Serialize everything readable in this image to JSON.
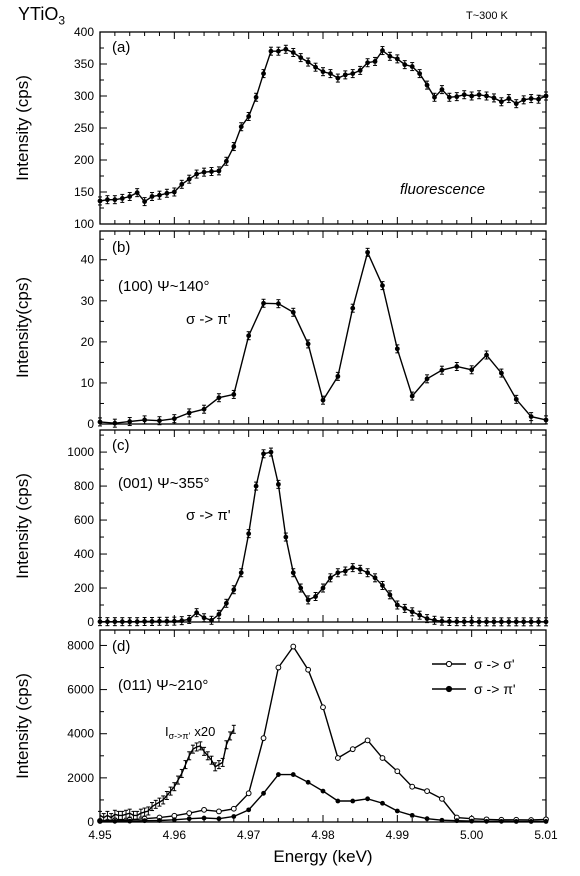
{
  "header": {
    "title": "YTiO3",
    "title_main": "YTiO",
    "title_sub": "3",
    "temperature": "T~300 K"
  },
  "chart_data": [
    {
      "type": "line",
      "panel_label": "(a)",
      "ylabel": "Intensity (cps)",
      "xlim": [
        4.95,
        5.01
      ],
      "ylim": [
        100,
        400
      ],
      "yticks": [
        100,
        150,
        200,
        250,
        300,
        350,
        400
      ],
      "annotations": [
        "fluorescence"
      ],
      "series": [
        {
          "marker": "filled",
          "x": [
            4.95,
            4.951,
            4.952,
            4.953,
            4.954,
            4.955,
            4.956,
            4.957,
            4.958,
            4.959,
            4.96,
            4.961,
            4.962,
            4.963,
            4.964,
            4.965,
            4.966,
            4.967,
            4.968,
            4.969,
            4.97,
            4.971,
            4.972,
            4.973,
            4.974,
            4.975,
            4.976,
            4.977,
            4.978,
            4.979,
            4.98,
            4.981,
            4.982,
            4.983,
            4.984,
            4.985,
            4.986,
            4.987,
            4.988,
            4.989,
            4.99,
            4.991,
            4.992,
            4.993,
            4.994,
            4.995,
            4.996,
            4.997,
            4.998,
            4.999,
            5.0,
            5.001,
            5.002,
            5.003,
            5.004,
            5.005,
            5.006,
            5.007,
            5.008,
            5.009,
            5.01
          ],
          "y": [
            136,
            138,
            138,
            140,
            143,
            149,
            135,
            143,
            145,
            148,
            150,
            162,
            170,
            178,
            181,
            182,
            183,
            198,
            221,
            252,
            268,
            298,
            335,
            370,
            370,
            373,
            368,
            360,
            353,
            345,
            338,
            335,
            328,
            333,
            335,
            340,
            352,
            354,
            371,
            362,
            358,
            349,
            346,
            335,
            317,
            298,
            310,
            298,
            299,
            302,
            300,
            302,
            300,
            297,
            291,
            296,
            288,
            294,
            296,
            295,
            300
          ]
        }
      ]
    },
    {
      "type": "line",
      "panel_label": "(b)",
      "ylabel": "Intensity(cps)",
      "xlim": [
        4.95,
        5.01
      ],
      "ylim": [
        0,
        47
      ],
      "yticks": [
        0,
        10,
        20,
        30,
        40
      ],
      "annotations": [
        "(100)  Ψ~140°",
        "σ -> π'"
      ],
      "series": [
        {
          "marker": "filled",
          "x": [
            4.95,
            4.952,
            4.954,
            4.956,
            4.958,
            4.96,
            4.962,
            4.964,
            4.966,
            4.968,
            4.97,
            4.972,
            4.974,
            4.976,
            4.978,
            4.98,
            4.982,
            4.984,
            4.986,
            4.988,
            4.99,
            4.992,
            4.994,
            4.996,
            4.998,
            5.0,
            5.002,
            5.004,
            5.006,
            5.008,
            5.01
          ],
          "y": [
            0.5,
            0.2,
            0.6,
            1,
            0.8,
            1.3,
            2.7,
            3.6,
            6.4,
            7.2,
            21.5,
            29.4,
            29.3,
            27.2,
            19.5,
            5.8,
            11.6,
            28.2,
            41.8,
            33.7,
            18.3,
            6.8,
            11,
            13.1,
            14,
            13.2,
            16.8,
            12.4,
            6,
            1.8,
            1
          ]
        }
      ]
    },
    {
      "type": "line",
      "panel_label": "(c)",
      "ylabel": "Intensity (cps)",
      "xlim": [
        4.95,
        5.01
      ],
      "ylim": [
        0,
        1130
      ],
      "yticks": [
        0,
        200,
        400,
        600,
        800,
        1000
      ],
      "annotations": [
        "(001)  Ψ~355°",
        "σ -> π'"
      ],
      "series": [
        {
          "marker": "filled",
          "x": [
            4.95,
            4.951,
            4.952,
            4.953,
            4.954,
            4.955,
            4.956,
            4.957,
            4.958,
            4.959,
            4.96,
            4.961,
            4.962,
            4.963,
            4.964,
            4.965,
            4.966,
            4.967,
            4.968,
            4.969,
            4.97,
            4.971,
            4.972,
            4.973,
            4.974,
            4.975,
            4.976,
            4.977,
            4.978,
            4.979,
            4.98,
            4.981,
            4.982,
            4.983,
            4.984,
            4.985,
            4.986,
            4.987,
            4.988,
            4.989,
            4.99,
            4.991,
            4.992,
            4.993,
            4.994,
            4.995,
            4.996,
            4.997,
            4.998,
            4.999,
            5.0,
            5.001,
            5.002,
            5.003,
            5.004,
            5.005,
            5.006,
            5.007,
            5.008,
            5.009,
            5.01
          ],
          "y": [
            2,
            2,
            2,
            2,
            2,
            2,
            3,
            3,
            4,
            4,
            5,
            8,
            15,
            55,
            25,
            10,
            45,
            110,
            190,
            290,
            520,
            800,
            990,
            1000,
            810,
            500,
            290,
            200,
            130,
            150,
            200,
            260,
            290,
            300,
            320,
            310,
            290,
            260,
            215,
            160,
            100,
            80,
            60,
            40,
            20,
            10,
            5,
            3,
            2,
            2,
            2,
            1,
            1,
            1,
            1,
            1,
            1,
            1,
            1,
            1,
            1
          ]
        }
      ]
    },
    {
      "type": "line",
      "panel_label": "(d)",
      "ylabel": "Intensity (cps)",
      "xlabel": "Energy (keV)",
      "xlim": [
        4.95,
        5.01
      ],
      "ylim": [
        0,
        8700
      ],
      "xticks": [
        4.95,
        4.96,
        4.97,
        4.98,
        4.99,
        5.0,
        5.01
      ],
      "xtick_labels": [
        "4.95",
        "4.96",
        "4.97",
        "4.98",
        "4.99",
        "5.00",
        "5.01"
      ],
      "yticks": [
        0,
        2000,
        4000,
        6000,
        8000
      ],
      "legend_position": "top-right",
      "annotations": [
        "(011)  Ψ~210°",
        "Iσ->π'  x20"
      ],
      "annotation_parts": {
        "inset_I": "I",
        "inset_sub": "σ->π'",
        "inset_scale": "x20"
      },
      "series": [
        {
          "name": "σ -> σ'",
          "marker": "open",
          "x": [
            4.95,
            4.952,
            4.954,
            4.956,
            4.958,
            4.96,
            4.962,
            4.964,
            4.966,
            4.968,
            4.97,
            4.972,
            4.974,
            4.976,
            4.978,
            4.98,
            4.982,
            4.984,
            4.986,
            4.988,
            4.99,
            4.992,
            4.994,
            4.996,
            4.998,
            5.0,
            5.002,
            5.004,
            5.006,
            5.008,
            5.01
          ],
          "y": [
            50,
            80,
            100,
            150,
            200,
            280,
            400,
            550,
            480,
            600,
            1300,
            3800,
            7000,
            7950,
            6900,
            5200,
            2900,
            3300,
            3700,
            2900,
            2300,
            1600,
            1400,
            1050,
            200,
            150,
            120,
            100,
            100,
            90,
            120
          ]
        },
        {
          "name": "σ -> π'",
          "marker": "filled",
          "x": [
            4.95,
            4.952,
            4.954,
            4.956,
            4.958,
            4.96,
            4.962,
            4.964,
            4.966,
            4.968,
            4.97,
            4.972,
            4.974,
            4.976,
            4.978,
            4.98,
            4.982,
            4.984,
            4.986,
            4.988,
            4.99,
            4.992,
            4.994,
            4.996,
            4.998,
            5.0,
            5.002,
            5.004,
            5.006,
            5.008,
            5.01
          ],
          "y": [
            30,
            30,
            40,
            60,
            70,
            100,
            150,
            180,
            150,
            250,
            550,
            1300,
            2150,
            2150,
            1800,
            1400,
            950,
            950,
            1050,
            850,
            500,
            300,
            150,
            80,
            60,
            40,
            30,
            30,
            25,
            25,
            25
          ]
        },
        {
          "name": "Iσ->π' x20",
          "marker": "errorbar-only",
          "x": [
            4.95,
            4.9505,
            4.951,
            4.9515,
            4.952,
            4.9525,
            4.953,
            4.9535,
            4.954,
            4.9545,
            4.955,
            4.9555,
            4.956,
            4.9565,
            4.957,
            4.9575,
            4.958,
            4.9585,
            4.959,
            4.9595,
            4.96,
            4.9605,
            4.961,
            4.9615,
            4.962,
            4.9625,
            4.963,
            4.9635,
            4.964,
            4.9645,
            4.965,
            4.9655,
            4.966,
            4.9665,
            4.967,
            4.9675,
            4.968
          ],
          "y": [
            300,
            200,
            300,
            200,
            350,
            300,
            300,
            350,
            400,
            300,
            300,
            400,
            450,
            500,
            700,
            800,
            900,
            1000,
            1200,
            1400,
            1600,
            1900,
            2200,
            2600,
            3000,
            3300,
            3400,
            3450,
            3200,
            3000,
            2800,
            2500,
            2600,
            2700,
            3500,
            3900,
            4200
          ]
        }
      ]
    }
  ]
}
